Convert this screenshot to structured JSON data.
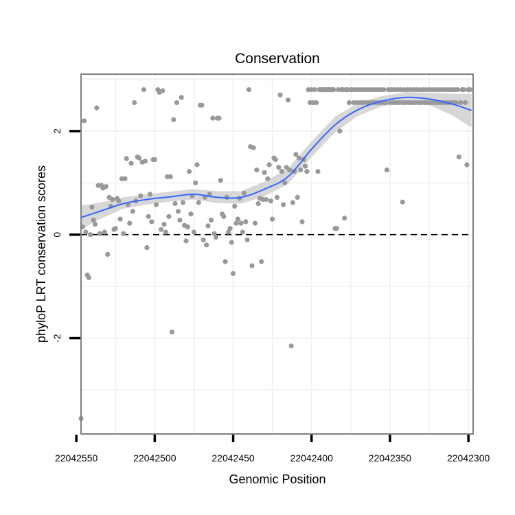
{
  "chart_data": {
    "type": "scatter",
    "title": "Conservation",
    "xlabel": "Genomic Position",
    "ylabel": "phyloP LRT conservation scores",
    "x_reversed": true,
    "xlim": [
      22042547,
      22042297
    ],
    "ylim": [
      -3.85,
      3.1
    ],
    "x_ticks": [
      22042550,
      22042500,
      22042450,
      22042400,
      22042350,
      22042300
    ],
    "x_tick_labels": [
      "22042550",
      "22042500",
      "22042450",
      "22042400",
      "22042350",
      "22042300"
    ],
    "y_ticks": [
      -2,
      0,
      2
    ],
    "y_tick_labels": [
      "-2",
      "0",
      "2"
    ],
    "grid": true,
    "reference_line": {
      "y": 0,
      "style": "dashed"
    },
    "colors": {
      "points": "#999999",
      "smooth": "#3366FF",
      "ribbon": "#D3D3D3",
      "panel_border": "#7F7F7F",
      "grid": "#F2F2F2"
    },
    "points": [
      {
        "x": 22042547,
        "y": -3.55
      },
      {
        "x": 22042545,
        "y": 2.2
      },
      {
        "x": 22042546,
        "y": 0.15
      },
      {
        "x": 22042544,
        "y": 0.05
      },
      {
        "x": 22042543,
        "y": -0.78
      },
      {
        "x": 22042542,
        "y": -0.83
      },
      {
        "x": 22042541,
        "y": 0.0
      },
      {
        "x": 22042540,
        "y": 0.53
      },
      {
        "x": 22042539,
        "y": 0.28
      },
      {
        "x": 22042538,
        "y": 0.2
      },
      {
        "x": 22042537,
        "y": 2.45
      },
      {
        "x": 22042536,
        "y": 0.95
      },
      {
        "x": 22042535,
        "y": 0.02
      },
      {
        "x": 22042534,
        "y": 0.95
      },
      {
        "x": 22042533,
        "y": 0.9
      },
      {
        "x": 22042532,
        "y": 0.05
      },
      {
        "x": 22042531,
        "y": 0.93
      },
      {
        "x": 22042530,
        "y": -0.38
      },
      {
        "x": 22042529,
        "y": 0.72
      },
      {
        "x": 22042528,
        "y": 0.55
      },
      {
        "x": 22042527,
        "y": 0.68
      },
      {
        "x": 22042526,
        "y": 0.1
      },
      {
        "x": 22042525,
        "y": 0.12
      },
      {
        "x": 22042524,
        "y": 0.7
      },
      {
        "x": 22042523,
        "y": 0.65
      },
      {
        "x": 22042522,
        "y": 0.3
      },
      {
        "x": 22042521,
        "y": 1.08
      },
      {
        "x": 22042520,
        "y": 0.02
      },
      {
        "x": 22042519,
        "y": 1.08
      },
      {
        "x": 22042518,
        "y": 1.47
      },
      {
        "x": 22042517,
        "y": 0.58
      },
      {
        "x": 22042516,
        "y": 0.22
      },
      {
        "x": 22042515,
        "y": 1.38
      },
      {
        "x": 22042514,
        "y": 0.45
      },
      {
        "x": 22042513,
        "y": 2.55
      },
      {
        "x": 22042512,
        "y": 0.65
      },
      {
        "x": 22042511,
        "y": 1.5
      },
      {
        "x": 22042510,
        "y": 1.48
      },
      {
        "x": 22042509,
        "y": 0.75
      },
      {
        "x": 22042508,
        "y": 1.4
      },
      {
        "x": 22042507,
        "y": 2.8
      },
      {
        "x": 22042506,
        "y": 1.42
      },
      {
        "x": 22042505,
        "y": -0.25
      },
      {
        "x": 22042504,
        "y": 0.35
      },
      {
        "x": 22042503,
        "y": 0.78
      },
      {
        "x": 22042502,
        "y": 0.25
      },
      {
        "x": 22042501,
        "y": 1.45
      },
      {
        "x": 22042500,
        "y": 1.45
      },
      {
        "x": 22042499,
        "y": 0.58
      },
      {
        "x": 22042498,
        "y": 2.8
      },
      {
        "x": 22042497,
        "y": 2.75
      },
      {
        "x": 22042496,
        "y": 0.1
      },
      {
        "x": 22042495,
        "y": 2.78
      },
      {
        "x": 22042494,
        "y": 0.2
      },
      {
        "x": 22042493,
        "y": 0.05
      },
      {
        "x": 22042492,
        "y": 1.12
      },
      {
        "x": 22042491,
        "y": 0.35
      },
      {
        "x": 22042490,
        "y": 1.12
      },
      {
        "x": 22042489,
        "y": -1.88
      },
      {
        "x": 22042488,
        "y": 2.22
      },
      {
        "x": 22042487,
        "y": 0.6
      },
      {
        "x": 22042486,
        "y": 2.55
      },
      {
        "x": 22042485,
        "y": 0.45
      },
      {
        "x": 22042484,
        "y": 0.28
      },
      {
        "x": 22042483,
        "y": 2.65
      },
      {
        "x": 22042482,
        "y": 0.62
      },
      {
        "x": 22042481,
        "y": 0.18
      },
      {
        "x": 22042480,
        "y": -0.12
      },
      {
        "x": 22042479,
        "y": 0.15
      },
      {
        "x": 22042478,
        "y": 1.22
      },
      {
        "x": 22042477,
        "y": 0.4
      },
      {
        "x": 22042476,
        "y": 0.75
      },
      {
        "x": 22042475,
        "y": 0.05
      },
      {
        "x": 22042474,
        "y": 1.0
      },
      {
        "x": 22042473,
        "y": 1.35
      },
      {
        "x": 22042472,
        "y": 0.62
      },
      {
        "x": 22042471,
        "y": 2.5
      },
      {
        "x": 22042470,
        "y": 2.5
      },
      {
        "x": 22042469,
        "y": -0.1
      },
      {
        "x": 22042468,
        "y": 0.72
      },
      {
        "x": 22042467,
        "y": -0.2
      },
      {
        "x": 22042466,
        "y": 0.17
      },
      {
        "x": 22042465,
        "y": 0.78
      },
      {
        "x": 22042464,
        "y": 0.28
      },
      {
        "x": 22042463,
        "y": 2.25
      },
      {
        "x": 22042462,
        "y": 0.02
      },
      {
        "x": 22042461,
        "y": -0.05
      },
      {
        "x": 22042460,
        "y": 2.25
      },
      {
        "x": 22042459,
        "y": 2.25
      },
      {
        "x": 22042458,
        "y": 1.05
      },
      {
        "x": 22042457,
        "y": 0.4
      },
      {
        "x": 22042456,
        "y": 0.35
      },
      {
        "x": 22042455,
        "y": -0.52
      },
      {
        "x": 22042454,
        "y": 0.72
      },
      {
        "x": 22042453,
        "y": 0.05
      },
      {
        "x": 22042452,
        "y": 0.12
      },
      {
        "x": 22042451,
        "y": -0.15
      },
      {
        "x": 22042450,
        "y": -0.75
      },
      {
        "x": 22042449,
        "y": 0.55
      },
      {
        "x": 22042448,
        "y": 0.22
      },
      {
        "x": 22042447,
        "y": 0.3
      },
      {
        "x": 22042446,
        "y": 0.7
      },
      {
        "x": 22042445,
        "y": 0.22
      },
      {
        "x": 22042444,
        "y": 0.05
      },
      {
        "x": 22042443,
        "y": 0.8
      },
      {
        "x": 22042442,
        "y": 0.25
      },
      {
        "x": 22042441,
        "y": -0.1
      },
      {
        "x": 22042440,
        "y": 2.8
      },
      {
        "x": 22042439,
        "y": 1.7
      },
      {
        "x": 22042438,
        "y": -0.6
      },
      {
        "x": 22042437,
        "y": 1.68
      },
      {
        "x": 22042436,
        "y": 0.22
      },
      {
        "x": 22042435,
        "y": 1.25
      },
      {
        "x": 22042434,
        "y": 0.6
      },
      {
        "x": 22042433,
        "y": 0.7
      },
      {
        "x": 22042432,
        "y": -0.52
      },
      {
        "x": 22042431,
        "y": 0.68
      },
      {
        "x": 22042430,
        "y": 1.2
      },
      {
        "x": 22042429,
        "y": 0.68
      },
      {
        "x": 22042428,
        "y": 1.08
      },
      {
        "x": 22042427,
        "y": 1.35
      },
      {
        "x": 22042426,
        "y": 0.65
      },
      {
        "x": 22042425,
        "y": 0.3
      },
      {
        "x": 22042424,
        "y": 1.48
      },
      {
        "x": 22042423,
        "y": 1.45
      },
      {
        "x": 22042422,
        "y": 0.72
      },
      {
        "x": 22042421,
        "y": 1.3
      },
      {
        "x": 22042420,
        "y": 2.7
      },
      {
        "x": 22042419,
        "y": 1.22
      },
      {
        "x": 22042418,
        "y": 0.58
      },
      {
        "x": 22042417,
        "y": 1.0
      },
      {
        "x": 22042416,
        "y": 1.3
      },
      {
        "x": 22042415,
        "y": 2.6
      },
      {
        "x": 22042414,
        "y": 1.25
      },
      {
        "x": 22042413,
        "y": -2.15
      },
      {
        "x": 22042412,
        "y": 0.62
      },
      {
        "x": 22042411,
        "y": 1.22
      },
      {
        "x": 22042410,
        "y": 1.55
      },
      {
        "x": 22042409,
        "y": 0.72
      },
      {
        "x": 22042408,
        "y": 1.48
      },
      {
        "x": 22042407,
        "y": 1.25
      },
      {
        "x": 22042406,
        "y": 0.25
      },
      {
        "x": 22042405,
        "y": 1.45
      },
      {
        "x": 22042404,
        "y": 1.32
      },
      {
        "x": 22042403,
        "y": 1.22
      },
      {
        "x": 22042402,
        "y": 2.8
      },
      {
        "x": 22042401,
        "y": 2.55
      },
      {
        "x": 22042400,
        "y": 2.8
      },
      {
        "x": 22042399,
        "y": 2.55
      },
      {
        "x": 22042398,
        "y": 2.8
      },
      {
        "x": 22042397,
        "y": 2.55
      },
      {
        "x": 22042396,
        "y": 1.22
      },
      {
        "x": 22042395,
        "y": 2.8
      },
      {
        "x": 22042394,
        "y": 2.8
      },
      {
        "x": 22042393,
        "y": 2.8
      },
      {
        "x": 22042392,
        "y": 2.8
      },
      {
        "x": 22042391,
        "y": 2.8
      },
      {
        "x": 22042390,
        "y": 2.8
      },
      {
        "x": 22042389,
        "y": 2.8
      },
      {
        "x": 22042388,
        "y": 2.8
      },
      {
        "x": 22042387,
        "y": 2.8
      },
      {
        "x": 22042386,
        "y": 2.8
      },
      {
        "x": 22042385,
        "y": 0.12
      },
      {
        "x": 22042384,
        "y": 0.12
      },
      {
        "x": 22042383,
        "y": 2.8
      },
      {
        "x": 22042382,
        "y": 2.0
      },
      {
        "x": 22042381,
        "y": 2.8
      },
      {
        "x": 22042380,
        "y": 2.8
      },
      {
        "x": 22042379,
        "y": 0.32
      },
      {
        "x": 22042378,
        "y": 2.8
      },
      {
        "x": 22042377,
        "y": 2.8
      },
      {
        "x": 22042376,
        "y": 2.55
      },
      {
        "x": 22042375,
        "y": 2.8
      },
      {
        "x": 22042374,
        "y": 2.8
      },
      {
        "x": 22042373,
        "y": 2.55
      },
      {
        "x": 22042372,
        "y": 2.8
      },
      {
        "x": 22042371,
        "y": 2.55
      },
      {
        "x": 22042370,
        "y": 2.8
      },
      {
        "x": 22042369,
        "y": 2.55
      },
      {
        "x": 22042368,
        "y": 2.8
      },
      {
        "x": 22042367,
        "y": 2.55
      },
      {
        "x": 22042366,
        "y": 2.8
      },
      {
        "x": 22042365,
        "y": 2.55
      },
      {
        "x": 22042364,
        "y": 2.8
      },
      {
        "x": 22042363,
        "y": 2.55
      },
      {
        "x": 22042362,
        "y": 2.8
      },
      {
        "x": 22042361,
        "y": 2.55
      },
      {
        "x": 22042360,
        "y": 2.8
      },
      {
        "x": 22042359,
        "y": 2.55
      },
      {
        "x": 22042358,
        "y": 2.8
      },
      {
        "x": 22042357,
        "y": 2.55
      },
      {
        "x": 22042356,
        "y": 2.8
      },
      {
        "x": 22042355,
        "y": 2.55
      },
      {
        "x": 22042354,
        "y": 2.8
      },
      {
        "x": 22042353,
        "y": 2.55
      },
      {
        "x": 22042352,
        "y": 1.25
      },
      {
        "x": 22042351,
        "y": 2.8
      },
      {
        "x": 22042350,
        "y": 2.55
      },
      {
        "x": 22042349,
        "y": 2.8
      },
      {
        "x": 22042348,
        "y": 2.55
      },
      {
        "x": 22042347,
        "y": 2.8
      },
      {
        "x": 22042346,
        "y": 2.55
      },
      {
        "x": 22042345,
        "y": 2.8
      },
      {
        "x": 22042344,
        "y": 2.55
      },
      {
        "x": 22042343,
        "y": 2.8
      },
      {
        "x": 22042342,
        "y": 2.55
      },
      {
        "x": 22042341,
        "y": 2.8
      },
      {
        "x": 22042340,
        "y": 2.55
      },
      {
        "x": 22042339,
        "y": 2.8
      },
      {
        "x": 22042338,
        "y": 2.55
      },
      {
        "x": 22042337,
        "y": 2.8
      },
      {
        "x": 22042336,
        "y": 2.55
      },
      {
        "x": 22042335,
        "y": 2.8
      },
      {
        "x": 22042334,
        "y": 2.55
      },
      {
        "x": 22042333,
        "y": 2.8
      },
      {
        "x": 22042332,
        "y": 2.55
      },
      {
        "x": 22042331,
        "y": 2.8
      },
      {
        "x": 22042330,
        "y": 2.55
      },
      {
        "x": 22042329,
        "y": 2.8
      },
      {
        "x": 22042328,
        "y": 2.55
      },
      {
        "x": 22042327,
        "y": 2.8
      },
      {
        "x": 22042326,
        "y": 2.55
      },
      {
        "x": 22042325,
        "y": 2.8
      },
      {
        "x": 22042324,
        "y": 2.55
      },
      {
        "x": 22042323,
        "y": 2.8
      },
      {
        "x": 22042322,
        "y": 2.55
      },
      {
        "x": 22042321,
        "y": 2.8
      },
      {
        "x": 22042320,
        "y": 2.55
      },
      {
        "x": 22042319,
        "y": 2.8
      },
      {
        "x": 22042318,
        "y": 2.55
      },
      {
        "x": 22042317,
        "y": 2.8
      },
      {
        "x": 22042316,
        "y": 2.55
      },
      {
        "x": 22042315,
        "y": 2.8
      },
      {
        "x": 22042314,
        "y": 2.55
      },
      {
        "x": 22042313,
        "y": 2.8
      },
      {
        "x": 22042312,
        "y": 2.55
      },
      {
        "x": 22042311,
        "y": 2.8
      },
      {
        "x": 22042310,
        "y": 2.55
      },
      {
        "x": 22042309,
        "y": 2.8
      },
      {
        "x": 22042308,
        "y": 2.55
      },
      {
        "x": 22042307,
        "y": 2.8
      },
      {
        "x": 22042306,
        "y": 1.5
      },
      {
        "x": 22042305,
        "y": 2.55
      },
      {
        "x": 22042304,
        "y": 2.8
      },
      {
        "x": 22042303,
        "y": 2.8
      },
      {
        "x": 22042302,
        "y": 2.55
      },
      {
        "x": 22042301,
        "y": 1.35
      },
      {
        "x": 22042300,
        "y": 2.8
      },
      {
        "x": 22042299,
        "y": 2.8
      },
      {
        "x": 22042342,
        "y": 0.63
      }
    ],
    "smooth": [
      {
        "x": 22042547,
        "y": 0.33,
        "lo": 0.1,
        "hi": 0.56
      },
      {
        "x": 22042535,
        "y": 0.45,
        "lo": 0.3,
        "hi": 0.62
      },
      {
        "x": 22042520,
        "y": 0.6,
        "lo": 0.5,
        "hi": 0.72
      },
      {
        "x": 22042505,
        "y": 0.68,
        "lo": 0.58,
        "hi": 0.78
      },
      {
        "x": 22042490,
        "y": 0.73,
        "lo": 0.64,
        "hi": 0.83
      },
      {
        "x": 22042475,
        "y": 0.78,
        "lo": 0.68,
        "hi": 0.88
      },
      {
        "x": 22042460,
        "y": 0.72,
        "lo": 0.61,
        "hi": 0.84
      },
      {
        "x": 22042445,
        "y": 0.72,
        "lo": 0.6,
        "hi": 0.84
      },
      {
        "x": 22042430,
        "y": 0.88,
        "lo": 0.74,
        "hi": 1.02
      },
      {
        "x": 22042415,
        "y": 1.12,
        "lo": 0.98,
        "hi": 1.28
      },
      {
        "x": 22042400,
        "y": 1.65,
        "lo": 1.5,
        "hi": 1.8
      },
      {
        "x": 22042385,
        "y": 2.12,
        "lo": 1.98,
        "hi": 2.28
      },
      {
        "x": 22042370,
        "y": 2.42,
        "lo": 2.3,
        "hi": 2.55
      },
      {
        "x": 22042355,
        "y": 2.58,
        "lo": 2.48,
        "hi": 2.68
      },
      {
        "x": 22042340,
        "y": 2.65,
        "lo": 2.55,
        "hi": 2.75
      },
      {
        "x": 22042325,
        "y": 2.62,
        "lo": 2.5,
        "hi": 2.74
      },
      {
        "x": 22042310,
        "y": 2.52,
        "lo": 2.3,
        "hi": 2.72
      },
      {
        "x": 22042298,
        "y": 2.4,
        "lo": 2.07,
        "hi": 2.72
      }
    ]
  }
}
